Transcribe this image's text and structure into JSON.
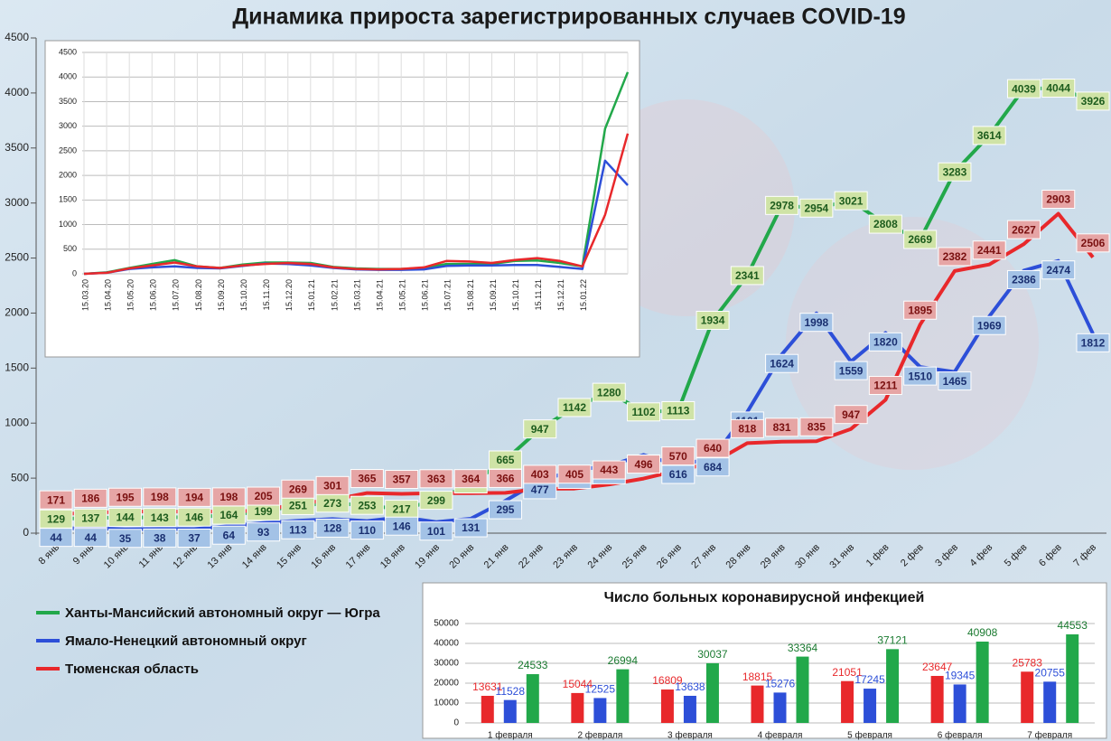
{
  "chart_data": [
    {
      "type": "line",
      "title": "Динамика прироста зарегистрированных случаев COVID-19",
      "categories": [
        "8 янв",
        "9 янв",
        "10 янв",
        "11 янв",
        "12 янв",
        "13 янв",
        "14 янв",
        "15 янв",
        "16 янв",
        "17 янв",
        "18 янв",
        "19 янв",
        "20 янв",
        "21 янв",
        "22 янв",
        "23 янв",
        "24 янв",
        "25 янв",
        "26 янв",
        "27 янв",
        "28 янв",
        "29 янв",
        "30 янв",
        "31 янв",
        "1 фев",
        "2 фев",
        "3 фев",
        "4 фев",
        "5 фев",
        "6 фев",
        "7 фев"
      ],
      "series": [
        {
          "name": "Ханты-Мансийский автономный округ — Югра",
          "color": "#22a84a",
          "values": [
            129,
            137,
            144,
            143,
            146,
            164,
            199,
            251,
            273,
            253,
            217,
            299,
            447,
            665,
            947,
            1142,
            1280,
            1102,
            1113,
            1934,
            2341,
            2978,
            2954,
            3021,
            2808,
            2669,
            3283,
            3614,
            4039,
            4044,
            3926
          ]
        },
        {
          "name": "Ямало-Ненецкий автономный округ",
          "color": "#2d4fd8",
          "values": [
            44,
            44,
            35,
            38,
            37,
            64,
            93,
            113,
            128,
            110,
            146,
            101,
            131,
            295,
            477,
            571,
            613,
            711,
            616,
            684,
            1101,
            1624,
            1998,
            1559,
            1820,
            1510,
            1465,
            1969,
            2386,
            2474,
            1812
          ]
        },
        {
          "name": "Тюменская область",
          "color": "#e8282b",
          "values": [
            171,
            186,
            195,
            198,
            194,
            198,
            205,
            269,
            301,
            365,
            357,
            363,
            364,
            366,
            403,
            405,
            443,
            496,
            570,
            640,
            818,
            831,
            835,
            947,
            1211,
            1895,
            2382,
            2441,
            2627,
            2903,
            2506
          ]
        }
      ],
      "ylim": [
        0,
        4500
      ],
      "yticks": [
        0,
        500,
        1000,
        1500,
        2000,
        2500,
        3000,
        3500,
        4000,
        4500
      ],
      "grid": false,
      "legend": "bottom-left"
    },
    {
      "type": "line",
      "categories": [
        "15.03.20",
        "15.04.20",
        "15.05.20",
        "15.06.20",
        "15.07.20",
        "15.08.20",
        "15.09.20",
        "15.10.20",
        "15.11.20",
        "15.12.20",
        "15.01.21",
        "15.02.21",
        "15.03.21",
        "15.04.21",
        "15.05.21",
        "15.06.21",
        "15.07.21",
        "15.08.21",
        "15.09.21",
        "15.10.21",
        "15.11.21",
        "15.12.21",
        "15.01.22",
        null,
        null
      ],
      "series": [
        {
          "color": "#22a84a",
          "values": [
            0,
            30,
            120,
            200,
            280,
            150,
            120,
            190,
            230,
            230,
            220,
            140,
            110,
            100,
            100,
            120,
            200,
            200,
            200,
            260,
            270,
            220,
            150,
            2950,
            4100
          ]
        },
        {
          "color": "#2d4fd8",
          "values": [
            0,
            20,
            100,
            130,
            150,
            120,
            110,
            160,
            210,
            200,
            170,
            120,
            90,
            80,
            80,
            90,
            160,
            170,
            170,
            180,
            180,
            140,
            100,
            2300,
            1800
          ]
        },
        {
          "color": "#e8282b",
          "values": [
            0,
            20,
            110,
            170,
            230,
            150,
            120,
            170,
            200,
            220,
            200,
            130,
            100,
            90,
            100,
            130,
            260,
            250,
            220,
            280,
            320,
            260,
            150,
            1200,
            2850
          ]
        }
      ],
      "ylim": [
        0,
        4500
      ],
      "yticks": [
        0,
        500,
        1000,
        1500,
        2000,
        2500,
        3000,
        3500,
        4000,
        4500
      ],
      "grid": true
    },
    {
      "type": "bar",
      "title": "Число больных коронавирусной инфекцией",
      "categories": [
        "1 февраля",
        "2 февраля",
        "3 февраля",
        "4 февраля",
        "5 февраля",
        "6 февраля",
        "7 февраля"
      ],
      "series": [
        {
          "color": "#e8282b",
          "values": [
            13631,
            15044,
            16809,
            18815,
            21051,
            23647,
            25783
          ]
        },
        {
          "color": "#2d4fd8",
          "values": [
            11528,
            12525,
            13638,
            15276,
            17245,
            19345,
            20755
          ]
        },
        {
          "color": "#22a84a",
          "values": [
            24533,
            26994,
            30037,
            33364,
            37121,
            40908,
            44553
          ]
        }
      ],
      "ylim": [
        0,
        50000
      ],
      "yticks": [
        0,
        10000,
        20000,
        30000,
        40000,
        50000
      ],
      "grid": true
    }
  ]
}
